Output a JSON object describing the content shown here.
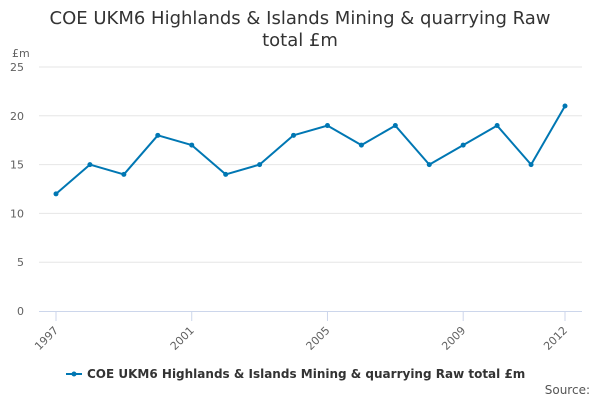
{
  "chart_data": {
    "type": "line",
    "title_line1": "COE UKM6 Highlands & Islands Mining & quarrying Raw",
    "title_line2": "total £m",
    "ylabel": "£m",
    "xlabel": "",
    "ylim": [
      0,
      25
    ],
    "y_ticks": [
      "0",
      "5",
      "10",
      "15",
      "20",
      "25"
    ],
    "x_ticks": [
      "1997",
      "2001",
      "2005",
      "2009",
      "2012"
    ],
    "grid": true,
    "legend_position": "bottom",
    "series": [
      {
        "name": "COE UKM6 Highlands & Islands Mining & quarrying Raw total £m",
        "color": "#0077b3",
        "x": [
          1997,
          1998,
          1999,
          2000,
          2001,
          2002,
          2003,
          2004,
          2005,
          2006,
          2007,
          2008,
          2009,
          2010,
          2011,
          2012
        ],
        "values": [
          12,
          15,
          14,
          18,
          17,
          14,
          15,
          18,
          19,
          17,
          19,
          15,
          17,
          19,
          15,
          21
        ]
      }
    ]
  },
  "credits": {
    "label": "Source:"
  }
}
